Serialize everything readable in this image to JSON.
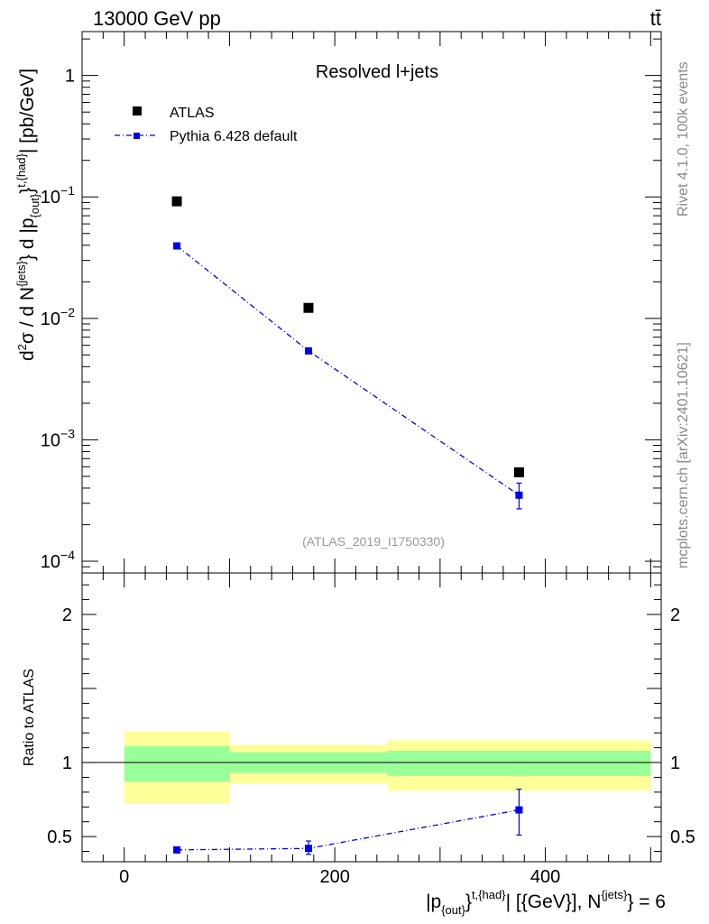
{
  "header": {
    "left": "13000 GeV pp",
    "right": "tt̄"
  },
  "side_labels": {
    "rivet": "Rivet 4.1.0,  100k events",
    "mcplots": "mcplots.cern.ch [arXiv:2401.10621]"
  },
  "chart_data": [
    {
      "type": "scatter",
      "panel": "main",
      "title": "Resolved l+jets",
      "analysis_tag": "(ATLAS_2019_I1750330)",
      "ylabel_parts": {
        "d": "d",
        "sup2": "2",
        "sigma_over": "σ / d N",
        "jets": "{jets}",
        "brace_d_p": "} d |p",
        "out": "{out}",
        "brace_close": "}",
        "thad": "t,{had}",
        "units": "| [pb/GeV]"
      },
      "yscale": "log",
      "ylim": [
        8e-05,
        2.3
      ],
      "xlim": [
        -40,
        510
      ],
      "y_ticks": [
        {
          "value": 1,
          "base": "1",
          "exp": ""
        },
        {
          "value": 0.1,
          "base": "10",
          "exp": "−1"
        },
        {
          "value": 0.01,
          "base": "10",
          "exp": "−2"
        },
        {
          "value": 0.001,
          "base": "10",
          "exp": "−3"
        },
        {
          "value": 0.0001,
          "base": "10",
          "exp": "−4"
        }
      ],
      "legend": [
        {
          "label": "ATLAS",
          "style": "black-square"
        },
        {
          "label": "Pythia 6.428 default",
          "style": "blue-dashdot"
        }
      ],
      "series": [
        {
          "name": "ATLAS",
          "color": "#000000",
          "x": [
            50,
            175,
            375
          ],
          "y": [
            0.092,
            0.0122,
            0.00054
          ]
        },
        {
          "name": "Pythia 6.428 default",
          "color": "#0000ee",
          "x": [
            50,
            175,
            375
          ],
          "y": [
            0.0395,
            0.0054,
            0.00035
          ],
          "y_err_low": [
            0.0008,
            0.0002,
            8e-05
          ],
          "y_err_high": [
            0.0008,
            0.0002,
            9e-05
          ]
        }
      ]
    },
    {
      "type": "scatter",
      "panel": "ratio",
      "ylabel": "Ratio to ATLAS",
      "ylim": [
        0.33,
        2.28
      ],
      "xlim": [
        -40,
        510
      ],
      "x_ticks": [
        0,
        200,
        400
      ],
      "y_ticks": [
        {
          "value": 0.5,
          "label": "0.5"
        },
        {
          "value": 1,
          "label": "1"
        },
        {
          "value": 2,
          "label": "2"
        }
      ],
      "xlabel_parts": {
        "p": "|p",
        "out": "{out}",
        "brace": "}",
        "thad": "t,{had}",
        "rest": "| [{GeV}], N",
        "jets": "{jets}",
        "tail": "} = 6"
      },
      "bands": [
        {
          "x0": 0,
          "x1": 100,
          "green": [
            0.87,
            1.11
          ],
          "yellow": [
            0.72,
            1.21
          ]
        },
        {
          "x0": 100,
          "x1": 250,
          "green": [
            0.93,
            1.07
          ],
          "yellow": [
            0.86,
            1.12
          ]
        },
        {
          "x0": 250,
          "x1": 500,
          "green": [
            0.91,
            1.08
          ],
          "yellow": [
            0.81,
            1.15
          ]
        }
      ],
      "band_colors": {
        "green": "#99ff99",
        "yellow": "#ffff99"
      },
      "series": [
        {
          "name": "Pythia 6.428 default",
          "color": "#0000ee",
          "x": [
            50,
            175,
            375
          ],
          "y": [
            0.41,
            0.42,
            0.68
          ],
          "y_err_low": [
            0.02,
            0.04,
            0.17
          ],
          "y_err_high": [
            0.02,
            0.05,
            0.14
          ]
        }
      ]
    }
  ]
}
